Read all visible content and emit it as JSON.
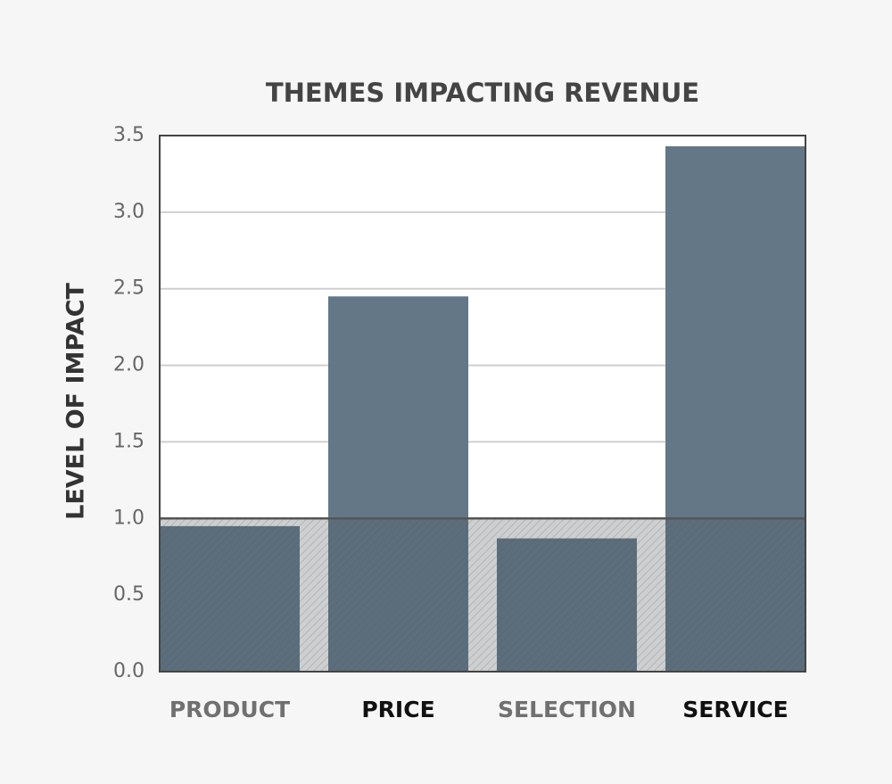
{
  "chart_data": {
    "type": "bar",
    "title": "THEMES IMPACTING REVENUE",
    "y_label": "LEVEL OF IMPACT",
    "categories": [
      "PRODUCT",
      "PRICE",
      "SELECTION",
      "SERVICE"
    ],
    "values": [
      0.95,
      2.45,
      0.87,
      3.43
    ],
    "color": "#647786",
    "threshold": 1,
    "ylim": [
      0,
      3.5
    ],
    "yticks": [
      {
        "value": 0,
        "label": "0.0"
      },
      0.5,
      {
        "value": 1,
        "label": "1.0"
      },
      1.5,
      {
        "value": 2,
        "label": "2.0"
      },
      2.5,
      {
        "value": 3,
        "label": "3.0"
      },
      3.5
    ],
    "grid": true
  }
}
